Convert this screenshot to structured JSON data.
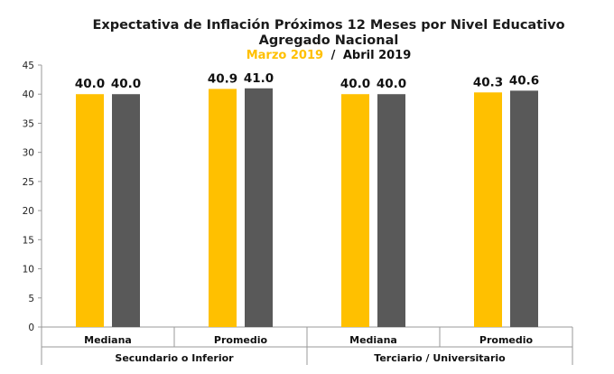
{
  "chart_data": {
    "type": "bar",
    "title": "Expectativa de Inflación Próximos 12 Meses por Nivel Educativo",
    "subtitle": "Agregado Nacional",
    "period_current_label": "Marzo 2019",
    "period_separator": "/",
    "period_prev_label": "Abril 2019",
    "ylim": [
      0,
      45
    ],
    "yticks": [
      "0",
      "5",
      "10",
      "15",
      "20",
      "25",
      "30",
      "35",
      "40",
      "45"
    ],
    "groups": [
      {
        "label": "Secundario o Inferior",
        "categories": [
          "Mediana",
          "Promedio"
        ]
      },
      {
        "label": "Terciario / Universitario",
        "categories": [
          "Mediana",
          "Promedio"
        ]
      }
    ],
    "series": [
      {
        "name": "Marzo 2019",
        "color": "#FFC000",
        "values": [
          40.0,
          40.9,
          40.0,
          40.3
        ]
      },
      {
        "name": "Abril 2019",
        "color": "#595959",
        "values": [
          40.0,
          41.0,
          40.0,
          40.6
        ]
      }
    ],
    "grid": false
  }
}
